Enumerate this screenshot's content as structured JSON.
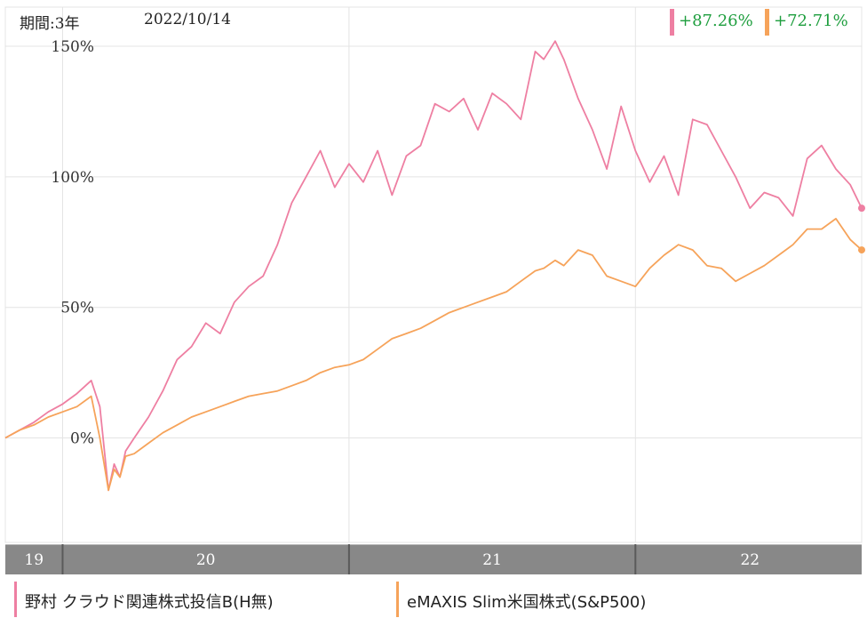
{
  "header": {
    "period": "期間:3年",
    "date": "2022/10/14"
  },
  "returns": [
    {
      "text": "+87.26%",
      "color": "#ee7fa2"
    },
    {
      "text": "+72.71%",
      "color": "#f6a35a"
    }
  ],
  "legend": [
    {
      "label": "野村 クラウド関連株式投信B(H無)",
      "color": "#ee7fa2"
    },
    {
      "label": "eMAXIS Slim米国株式(S&P500)",
      "color": "#f6a35a"
    }
  ],
  "colors": {
    "positive_text": "#1e9e3e",
    "grid": "#e4e4e4",
    "time_bar": "#888888"
  },
  "chart_data": {
    "type": "line",
    "ylim": [
      -40,
      165
    ],
    "yticks": [
      0,
      50,
      100,
      150
    ],
    "ytick_labels": [
      "0%",
      "50%",
      "100%",
      "150%"
    ],
    "x_range": [
      2019.8,
      2022.79
    ],
    "year_labels": [
      {
        "label": "19",
        "x": 2019.9
      },
      {
        "label": "20",
        "x": 2020.5
      },
      {
        "label": "21",
        "x": 2021.5
      },
      {
        "label": "22",
        "x": 2022.4
      }
    ],
    "year_boundaries": [
      2020.0,
      2021.0,
      2022.0
    ],
    "grid": true,
    "series": [
      {
        "name": "野村 クラウド関連株式投信B(H無)",
        "color": "#ee7fa2",
        "x": [
          2019.8,
          2019.85,
          2019.9,
          2019.95,
          2020.0,
          2020.05,
          2020.1,
          2020.13,
          2020.16,
          2020.18,
          2020.2,
          2020.22,
          2020.25,
          2020.3,
          2020.35,
          2020.4,
          2020.45,
          2020.5,
          2020.55,
          2020.6,
          2020.65,
          2020.7,
          2020.75,
          2020.8,
          2020.85,
          2020.9,
          2020.95,
          2021.0,
          2021.05,
          2021.1,
          2021.15,
          2021.2,
          2021.25,
          2021.3,
          2021.35,
          2021.4,
          2021.45,
          2021.5,
          2021.55,
          2021.6,
          2021.65,
          2021.68,
          2021.72,
          2021.75,
          2021.8,
          2021.85,
          2021.9,
          2021.95,
          2022.0,
          2022.05,
          2022.1,
          2022.15,
          2022.2,
          2022.25,
          2022.3,
          2022.35,
          2022.4,
          2022.45,
          2022.5,
          2022.55,
          2022.6,
          2022.65,
          2022.7,
          2022.75,
          2022.79
        ],
        "values": [
          0,
          3,
          6,
          10,
          13,
          17,
          22,
          12,
          -20,
          -10,
          -15,
          -5,
          0,
          8,
          18,
          30,
          35,
          44,
          40,
          52,
          58,
          62,
          74,
          90,
          100,
          110,
          96,
          105,
          98,
          110,
          93,
          108,
          112,
          128,
          125,
          130,
          118,
          132,
          128,
          122,
          148,
          145,
          152,
          145,
          130,
          118,
          103,
          127,
          110,
          98,
          108,
          93,
          122,
          120,
          110,
          100,
          88,
          94,
          92,
          85,
          107,
          112,
          103,
          97,
          88
        ]
      },
      {
        "name": "eMAXIS Slim米国株式(S&P500)",
        "color": "#f6a35a",
        "x": [
          2019.8,
          2019.85,
          2019.9,
          2019.95,
          2020.0,
          2020.05,
          2020.1,
          2020.13,
          2020.16,
          2020.18,
          2020.2,
          2020.22,
          2020.25,
          2020.3,
          2020.35,
          2020.4,
          2020.45,
          2020.5,
          2020.55,
          2020.6,
          2020.65,
          2020.7,
          2020.75,
          2020.8,
          2020.85,
          2020.9,
          2020.95,
          2021.0,
          2021.05,
          2021.1,
          2021.15,
          2021.2,
          2021.25,
          2021.3,
          2021.35,
          2021.4,
          2021.45,
          2021.5,
          2021.55,
          2021.6,
          2021.65,
          2021.68,
          2021.72,
          2021.75,
          2021.8,
          2021.85,
          2021.9,
          2021.95,
          2022.0,
          2022.05,
          2022.1,
          2022.15,
          2022.2,
          2022.25,
          2022.3,
          2022.35,
          2022.4,
          2022.45,
          2022.5,
          2022.55,
          2022.6,
          2022.65,
          2022.7,
          2022.75,
          2022.79
        ],
        "values": [
          0,
          3,
          5,
          8,
          10,
          12,
          16,
          0,
          -20,
          -12,
          -15,
          -7,
          -6,
          -2,
          2,
          5,
          8,
          10,
          12,
          14,
          16,
          17,
          18,
          20,
          22,
          25,
          27,
          28,
          30,
          34,
          38,
          40,
          42,
          45,
          48,
          50,
          52,
          54,
          56,
          60,
          64,
          65,
          68,
          66,
          72,
          70,
          62,
          60,
          58,
          65,
          70,
          74,
          72,
          66,
          65,
          60,
          63,
          66,
          70,
          74,
          80,
          80,
          84,
          76,
          72
        ]
      }
    ]
  }
}
